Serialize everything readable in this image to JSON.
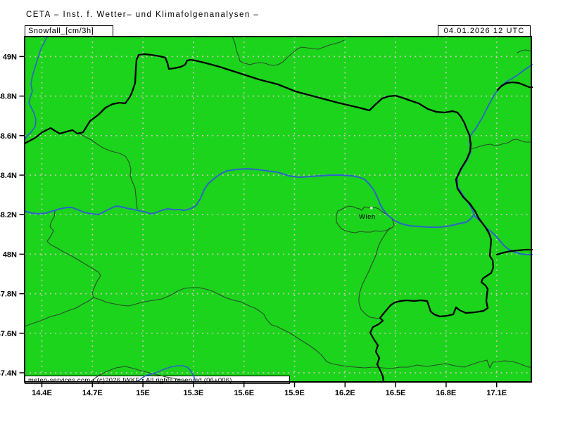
{
  "header": {
    "title": "CETA – Inst. f. Wetter– und Klimafolgenanalysen –"
  },
  "panel": {
    "variable_label": "Snowfall_[cm/3h]",
    "timestamp": "04.01.2026 12 UTC"
  },
  "map": {
    "axis": {
      "x_ticks": [
        "14.4E",
        "14.7E",
        "15E",
        "15.3E",
        "15.6E",
        "15.9E",
        "16.2E",
        "16.5E",
        "16.8E",
        "17.1E"
      ],
      "y_ticks": [
        "49N",
        "48.8N",
        "48.6N",
        "48.4N",
        "48.2N",
        "48N",
        "47.8N",
        "47.6N",
        "47.4N"
      ]
    },
    "city_labels": [
      {
        "name": "Wien"
      }
    ],
    "colors": {
      "land": "#1bd41b",
      "national_border": "#000000",
      "state_border": "#2b4d2b",
      "river": "#2f62cc",
      "grid_dots": "#d9c2c2"
    }
  },
  "footer": {
    "copyright": "meteo-services.com • (c)2026 IWKF • All rights reserved (06+006)"
  }
}
